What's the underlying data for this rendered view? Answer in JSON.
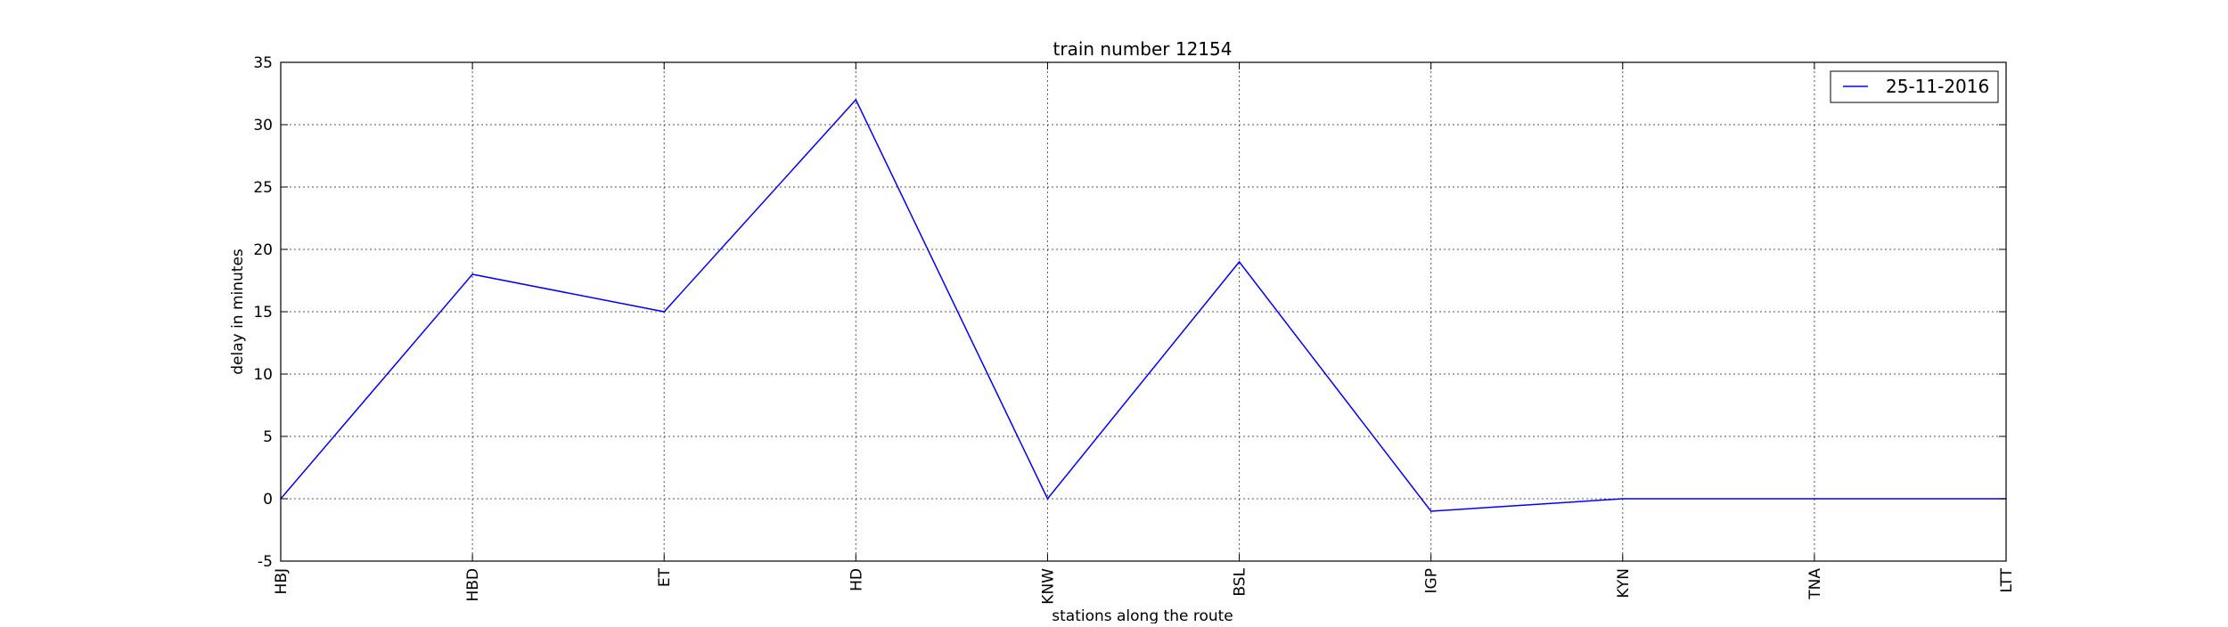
{
  "chart_data": {
    "type": "line",
    "title": "train number 12154",
    "xlabel": "stations along the route",
    "ylabel": "delay in minutes",
    "categories": [
      "HBJ",
      "HBD",
      "ET",
      "HD",
      "KNW",
      "BSL",
      "IGP",
      "KYN",
      "TNA",
      "LTT"
    ],
    "ylim": [
      -5,
      35
    ],
    "yticks": [
      -5,
      0,
      5,
      10,
      15,
      20,
      25,
      30,
      35
    ],
    "grid": true,
    "legend_position": "top-right",
    "series": [
      {
        "name": "25-11-2016",
        "color": "#0000ff",
        "values": [
          0,
          18,
          15,
          32,
          0,
          19,
          -1,
          0,
          0,
          0
        ]
      }
    ]
  }
}
